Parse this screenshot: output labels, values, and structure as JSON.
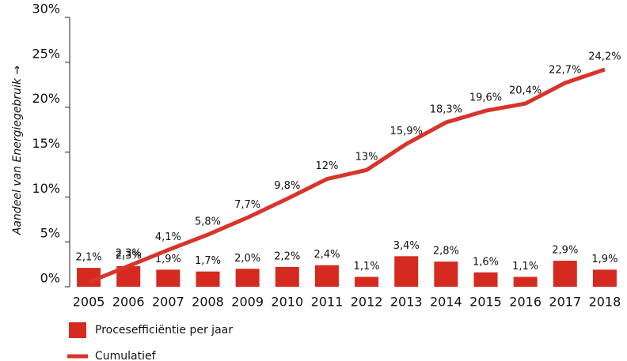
{
  "chart_data": {
    "type": "bar-line",
    "y_label": "Aandeel van Energiegebruik →",
    "categories": [
      "2005",
      "2006",
      "2007",
      "2008",
      "2009",
      "2010",
      "2011",
      "2012",
      "2013",
      "2014",
      "2015",
      "2016",
      "2017",
      "2018"
    ],
    "ylim": [
      0,
      30
    ],
    "yticks": [
      {
        "value": 0,
        "label": "0%"
      },
      {
        "value": 5,
        "label": "5%"
      },
      {
        "value": 10,
        "label": "10%"
      },
      {
        "value": 15,
        "label": "15%"
      },
      {
        "value": 20,
        "label": "20%"
      },
      {
        "value": 25,
        "label": "25%"
      },
      {
        "value": 30,
        "label": "30%"
      }
    ],
    "series": [
      {
        "name": "Procesefficiëntie per jaar",
        "type": "bar",
        "color": "#d42a20",
        "values": [
          2.1,
          2.3,
          1.9,
          1.7,
          2.0,
          2.2,
          2.4,
          1.1,
          3.4,
          2.8,
          1.6,
          1.1,
          2.9,
          1.9
        ],
        "value_labels": [
          "2,1%",
          "2,3%",
          "1,9%",
          "1,7%",
          "2,0%",
          "2,2%",
          "2,4%",
          "1,1%",
          "3,4%",
          "2,8%",
          "1,6%",
          "1,1%",
          "2,9%",
          "1,9%"
        ]
      },
      {
        "name": "Cumulatief",
        "type": "line",
        "color": "#d8342b",
        "values": [
          0.5,
          2.3,
          4.1,
          5.8,
          7.7,
          9.8,
          12,
          13,
          15.9,
          18.3,
          19.6,
          20.4,
          22.7,
          24.2
        ],
        "value_labels": [
          null,
          "2,3%",
          "4,1%",
          "5,8%",
          "7,7%",
          "9,8%",
          "12%",
          "13%",
          "15,9%",
          "18,3%",
          "19,6%",
          "20,4%",
          "22,7%",
          "24,2%"
        ]
      }
    ]
  }
}
